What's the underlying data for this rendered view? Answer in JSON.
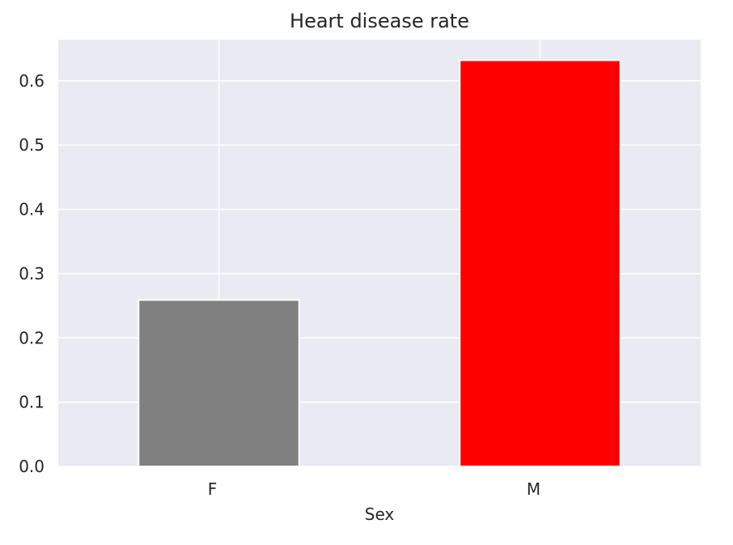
{
  "chart_data": {
    "type": "bar",
    "title": "Heart disease rate",
    "xlabel": "Sex",
    "ylabel": "",
    "categories": [
      "F",
      "M"
    ],
    "values": [
      0.259,
      0.632
    ],
    "bar_colors": [
      "#808080",
      "#ff0000"
    ],
    "ylim": [
      0,
      0.664
    ],
    "yticks": [
      0.0,
      0.1,
      0.2,
      0.3,
      0.4,
      0.5,
      0.6
    ],
    "ytick_labels": [
      "0.0",
      "0.1",
      "0.2",
      "0.3",
      "0.4",
      "0.5",
      "0.6"
    ],
    "grid": true,
    "plot_background": "#eaeaf2",
    "grid_color": "#ffffff",
    "legend": "none"
  }
}
